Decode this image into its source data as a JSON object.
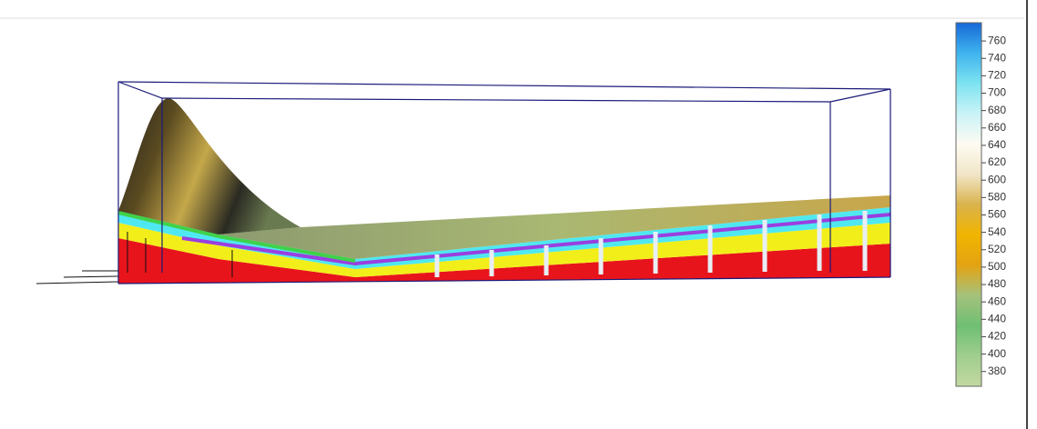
{
  "colorbar": {
    "lim": [
      363,
      781
    ],
    "ticks": [
      380,
      400,
      420,
      440,
      460,
      480,
      500,
      520,
      540,
      560,
      580,
      600,
      620,
      640,
      660,
      680,
      700,
      720,
      740,
      760
    ],
    "colors": [
      "#c3d8a0",
      "#9fce8e",
      "#6fbf73",
      "#a5c27c",
      "#e3a312",
      "#f0b400",
      "#d9b34d",
      "#f2e6c8",
      "#fdfbf2",
      "#c9f3f7",
      "#7de3f0",
      "#3fb3ee",
      "#1769d8"
    ]
  }
}
